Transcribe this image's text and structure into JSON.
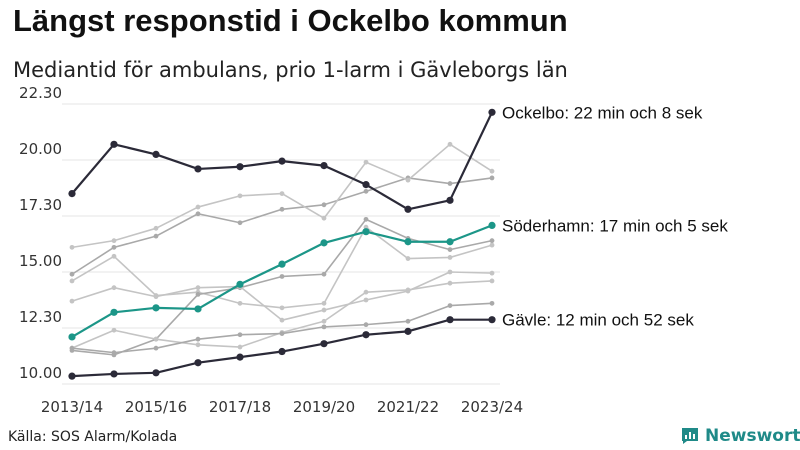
{
  "title": "Längst responstid i Ockelbo kommun",
  "subtitle": "Mediantid för ambulans, prio 1-larm i Gävleborgs län",
  "source": "Källa: SOS Alarm/Kolada",
  "brand": {
    "name": "Newsworthy",
    "icon": "newsworthy-logo-icon",
    "color": "#1f8a88"
  },
  "colors": {
    "background_series": "#c4c4c4",
    "background_series_alt": "#a9a9a9",
    "ockelbo": "#2b2a38",
    "soderhamn": "#1c9688",
    "gavle": "#2b2a38"
  },
  "chart_data": {
    "type": "line",
    "title": "Längst responstid i Ockelbo kommun",
    "subtitle": "Mediantid för ambulans, prio 1-larm i Gävleborgs län",
    "xlabel": "",
    "ylabel": "",
    "x": [
      "2013/14",
      "2014/15",
      "2015/16",
      "2016/17",
      "2017/18",
      "2018/19",
      "2019/20",
      "2020/21",
      "2021/22",
      "2022/23",
      "2023/24"
    ],
    "x_tick_labels": [
      "2013/14",
      "2015/16",
      "2017/18",
      "2019/20",
      "2021/22",
      "2023/24"
    ],
    "y_tick_labels": [
      "10.00",
      "12.30",
      "15.00",
      "17.30",
      "20.00",
      "22.30"
    ],
    "ylim": [
      10.0,
      22.5
    ],
    "grid": "horizontal",
    "highlighted_series": [
      {
        "name": "Ockelbo",
        "label": "Ockelbo: 22 min och 8 sek",
        "color": "#2b2a38",
        "values": [
          18.5,
          20.7,
          20.25,
          19.6,
          19.7,
          19.95,
          19.75,
          18.9,
          17.8,
          18.2,
          22.13
        ]
      },
      {
        "name": "Söderhamn",
        "label": "Söderhamn: 17 min och 5 sek",
        "color": "#1c9688",
        "values": [
          12.1,
          13.2,
          13.4,
          13.35,
          14.45,
          15.35,
          16.3,
          16.8,
          16.35,
          16.35,
          17.08
        ]
      },
      {
        "name": "Gävle",
        "label": "Gävle: 12 min och 52 sek",
        "color": "#2b2a38",
        "values": [
          10.35,
          10.45,
          10.5,
          10.95,
          11.2,
          11.45,
          11.8,
          12.2,
          12.35,
          12.87,
          12.87
        ]
      }
    ],
    "background_series": [
      {
        "values": [
          14.9,
          16.1,
          16.6,
          17.6,
          17.2,
          17.8,
          18.0,
          18.6,
          19.2,
          18.95,
          19.2
        ]
      },
      {
        "values": [
          16.1,
          16.4,
          16.95,
          17.9,
          18.4,
          18.5,
          17.4,
          19.9,
          19.1,
          20.7,
          19.5
        ]
      },
      {
        "values": [
          14.6,
          15.7,
          13.95,
          14.1,
          13.6,
          13.4,
          13.6,
          17.0,
          15.6,
          15.65,
          16.2
        ]
      },
      {
        "values": [
          11.5,
          11.3,
          12.0,
          14.0,
          14.3,
          14.8,
          14.9,
          17.35,
          16.5,
          16.0,
          16.4
        ]
      },
      {
        "values": [
          13.7,
          14.3,
          13.9,
          14.3,
          14.35,
          12.85,
          13.3,
          13.75,
          14.15,
          15.0,
          14.95
        ]
      },
      {
        "values": [
          11.6,
          12.4,
          12.0,
          11.75,
          11.65,
          12.3,
          12.8,
          14.1,
          14.2,
          14.5,
          14.6
        ]
      },
      {
        "values": [
          11.6,
          11.4,
          11.6,
          12.0,
          12.2,
          12.25,
          12.55,
          12.65,
          12.8,
          13.5,
          13.6
        ]
      }
    ]
  }
}
